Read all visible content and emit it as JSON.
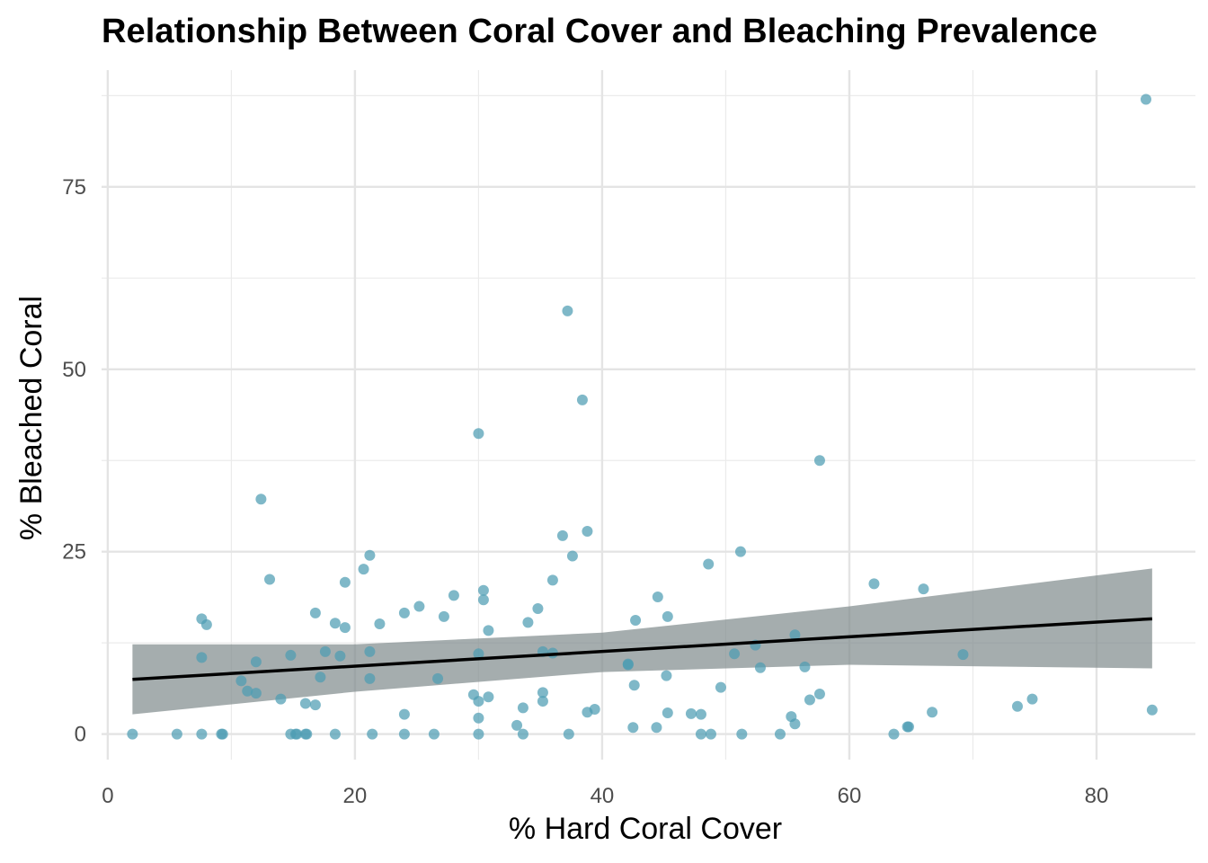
{
  "chart_data": {
    "type": "scatter",
    "title": "Relationship Between Coral Cover and Bleaching Prevalence",
    "xlabel": "% Hard Coral Cover",
    "ylabel": "% Bleached Coral",
    "xlim": [
      -0.5,
      88
    ],
    "ylim": [
      -3.5,
      91
    ],
    "x_ticks": [
      0,
      20,
      40,
      60,
      80
    ],
    "y_ticks": [
      0,
      25,
      50,
      75
    ],
    "grid": true,
    "point_color": "#4e9cb3",
    "band_color": "#7f8a8c",
    "line_color": "#000000",
    "trend": {
      "x_start": 2.0,
      "y_start": 7.5,
      "x_end": 84.5,
      "y_end": 15.8,
      "band_lower": [
        [
          2.0,
          2.7
        ],
        [
          20,
          5.8
        ],
        [
          40,
          8.5
        ],
        [
          60,
          9.5
        ],
        [
          84.5,
          9.0
        ]
      ],
      "band_upper": [
        [
          2.0,
          12.3
        ],
        [
          20,
          12.3
        ],
        [
          40,
          13.9
        ],
        [
          60,
          17.5
        ],
        [
          84.5,
          22.7
        ]
      ]
    },
    "points": [
      [
        84.0,
        87.0
      ],
      [
        37.2,
        58.0
      ],
      [
        38.4,
        45.8
      ],
      [
        30.0,
        41.2
      ],
      [
        57.6,
        37.5
      ],
      [
        12.4,
        32.2
      ],
      [
        38.8,
        27.8
      ],
      [
        36.8,
        27.2
      ],
      [
        51.2,
        25.0
      ],
      [
        21.2,
        24.5
      ],
      [
        37.6,
        24.4
      ],
      [
        48.6,
        23.3
      ],
      [
        20.7,
        22.6
      ],
      [
        13.1,
        21.2
      ],
      [
        36.0,
        21.1
      ],
      [
        19.2,
        20.8
      ],
      [
        62.0,
        20.6
      ],
      [
        66.0,
        19.9
      ],
      [
        30.4,
        19.7
      ],
      [
        44.5,
        18.8
      ],
      [
        28.0,
        19.0
      ],
      [
        30.4,
        18.4
      ],
      [
        25.2,
        17.5
      ],
      [
        34.8,
        17.2
      ],
      [
        24.0,
        16.6
      ],
      [
        16.8,
        16.6
      ],
      [
        27.2,
        16.1
      ],
      [
        45.3,
        16.1
      ],
      [
        7.6,
        15.8
      ],
      [
        42.7,
        15.6
      ],
      [
        34.0,
        15.3
      ],
      [
        18.4,
        15.2
      ],
      [
        22.0,
        15.1
      ],
      [
        8.0,
        15.0
      ],
      [
        19.2,
        14.6
      ],
      [
        30.8,
        14.2
      ],
      [
        55.6,
        13.6
      ],
      [
        52.4,
        12.2
      ],
      [
        17.6,
        11.3
      ],
      [
        21.2,
        11.3
      ],
      [
        35.2,
        11.3
      ],
      [
        36.0,
        11.1
      ],
      [
        30.0,
        11.0
      ],
      [
        50.7,
        11.0
      ],
      [
        69.2,
        10.9
      ],
      [
        14.8,
        10.8
      ],
      [
        18.8,
        10.7
      ],
      [
        7.6,
        10.5
      ],
      [
        12.0,
        9.9
      ],
      [
        42.1,
        9.6
      ],
      [
        42.1,
        9.5
      ],
      [
        52.8,
        9.1
      ],
      [
        56.4,
        9.2
      ],
      [
        45.2,
        8.0
      ],
      [
        17.2,
        7.8
      ],
      [
        21.2,
        7.6
      ],
      [
        26.7,
        7.6
      ],
      [
        10.8,
        7.3
      ],
      [
        42.6,
        6.7
      ],
      [
        49.6,
        6.4
      ],
      [
        11.3,
        5.9
      ],
      [
        12.0,
        5.6
      ],
      [
        57.6,
        5.5
      ],
      [
        35.2,
        5.7
      ],
      [
        29.6,
        5.4
      ],
      [
        30.8,
        5.1
      ],
      [
        14.0,
        4.8
      ],
      [
        56.8,
        4.7
      ],
      [
        74.8,
        4.8
      ],
      [
        35.2,
        4.5
      ],
      [
        30.0,
        4.5
      ],
      [
        16.0,
        4.2
      ],
      [
        16.8,
        4.0
      ],
      [
        73.6,
        3.8
      ],
      [
        33.6,
        3.6
      ],
      [
        39.4,
        3.4
      ],
      [
        38.8,
        3.0
      ],
      [
        84.5,
        3.3
      ],
      [
        66.7,
        3.0
      ],
      [
        45.3,
        2.9
      ],
      [
        47.2,
        2.8
      ],
      [
        48.0,
        2.7
      ],
      [
        24.0,
        2.7
      ],
      [
        55.3,
        2.4
      ],
      [
        30.0,
        2.2
      ],
      [
        33.1,
        1.2
      ],
      [
        55.6,
        1.4
      ],
      [
        42.5,
        0.9
      ],
      [
        44.4,
        0.9
      ],
      [
        64.8,
        1.0
      ],
      [
        64.7,
        1.0
      ],
      [
        2.0,
        0.0
      ],
      [
        5.6,
        0.0
      ],
      [
        7.6,
        0.0
      ],
      [
        9.2,
        0.0
      ],
      [
        9.3,
        0.0
      ],
      [
        14.8,
        0.0
      ],
      [
        15.2,
        0.0
      ],
      [
        15.3,
        0.0
      ],
      [
        16.0,
        0.0
      ],
      [
        16.1,
        0.0
      ],
      [
        18.4,
        0.0
      ],
      [
        21.4,
        0.0
      ],
      [
        24.0,
        0.0
      ],
      [
        26.4,
        0.0
      ],
      [
        30.0,
        0.0
      ],
      [
        33.6,
        0.0
      ],
      [
        37.3,
        0.0
      ],
      [
        48.0,
        0.0
      ],
      [
        48.8,
        0.0
      ],
      [
        51.3,
        0.0
      ],
      [
        54.4,
        0.0
      ],
      [
        63.6,
        0.0
      ]
    ]
  }
}
